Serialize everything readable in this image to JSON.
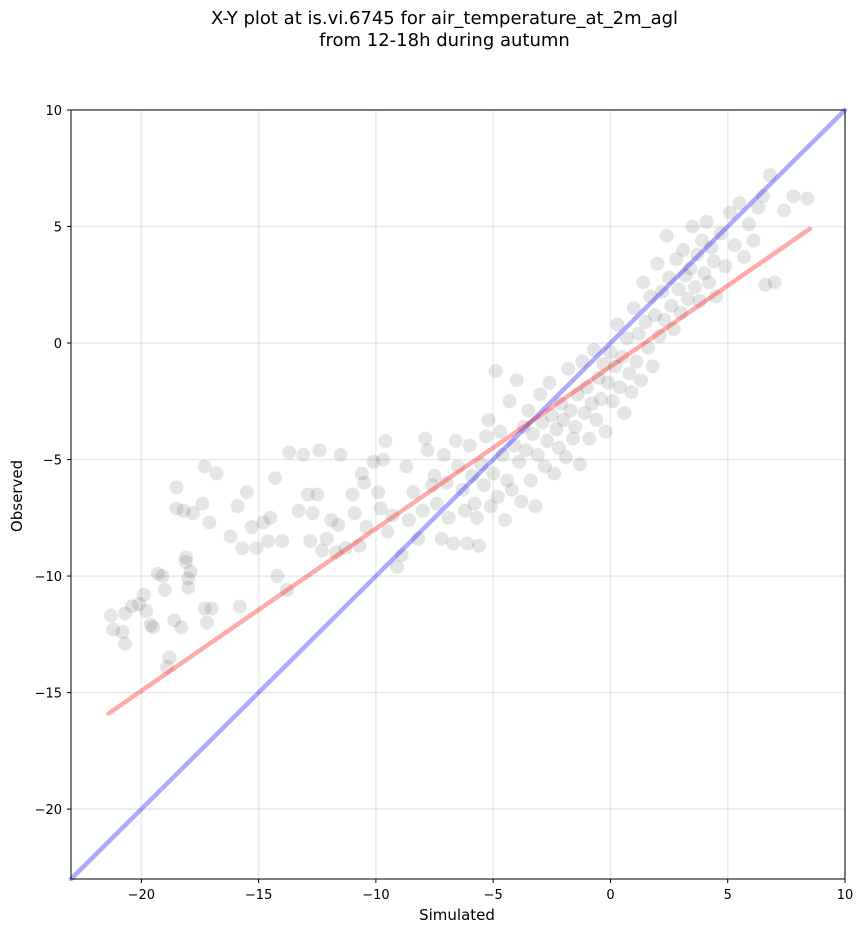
{
  "chart_data": {
    "type": "scatter",
    "title_line1": "X-Y plot at is.vi.6745 for air_temperature_at_2m_agl",
    "title_line2": "from 12-18h during autumn",
    "xlabel": "Simulated",
    "ylabel": "Observed",
    "xlim": [
      -23,
      10
    ],
    "ylim": [
      -23,
      10
    ],
    "xticks": [
      -20,
      -15,
      -10,
      -5,
      0,
      5,
      10
    ],
    "yticks": [
      -20,
      -15,
      -10,
      -5,
      0,
      5,
      10
    ],
    "grid": true,
    "point_color": "#000000",
    "point_alpha": 0.1,
    "series": [
      {
        "points": [
          [
            -21.3,
            -11.7
          ],
          [
            -21.2,
            -12.3
          ],
          [
            -20.8,
            -12.4
          ],
          [
            -20.7,
            -11.6
          ],
          [
            -20.7,
            -12.9
          ],
          [
            -20.4,
            -11.3
          ],
          [
            -20.1,
            -11.2
          ],
          [
            -19.9,
            -10.8
          ],
          [
            -19.8,
            -11.5
          ],
          [
            -19.6,
            -12.1
          ],
          [
            -19.5,
            -12.2
          ],
          [
            -19.3,
            -9.9
          ],
          [
            -19.1,
            -10.0
          ],
          [
            -19.0,
            -10.6
          ],
          [
            -18.9,
            -13.9
          ],
          [
            -18.8,
            -13.5
          ],
          [
            -18.6,
            -11.9
          ],
          [
            -18.5,
            -7.1
          ],
          [
            -18.5,
            -6.2
          ],
          [
            -18.3,
            -12.2
          ],
          [
            -18.2,
            -7.2
          ],
          [
            -18.1,
            -9.2
          ],
          [
            -18.1,
            -9.4
          ],
          [
            -18.0,
            -10.1
          ],
          [
            -18.0,
            -10.5
          ],
          [
            -17.9,
            -9.8
          ],
          [
            -17.8,
            -7.3
          ],
          [
            -17.4,
            -6.9
          ],
          [
            -17.3,
            -11.4
          ],
          [
            -17.3,
            -5.3
          ],
          [
            -17.2,
            -12.0
          ],
          [
            -17.1,
            -7.7
          ],
          [
            -17.0,
            -11.4
          ],
          [
            -16.8,
            -5.6
          ],
          [
            -16.2,
            -8.3
          ],
          [
            -15.9,
            -7.0
          ],
          [
            -15.8,
            -11.3
          ],
          [
            -15.7,
            -8.8
          ],
          [
            -15.5,
            -6.4
          ],
          [
            -15.3,
            -7.9
          ],
          [
            -15.1,
            -8.8
          ],
          [
            -14.8,
            -7.7
          ],
          [
            -14.6,
            -8.5
          ],
          [
            -14.5,
            -7.5
          ],
          [
            -14.3,
            -5.8
          ],
          [
            -14.2,
            -10.0
          ],
          [
            -14.0,
            -8.5
          ],
          [
            -13.8,
            -10.6
          ],
          [
            -13.7,
            -4.7
          ],
          [
            -13.3,
            -7.2
          ],
          [
            -13.1,
            -4.8
          ],
          [
            -12.9,
            -6.5
          ],
          [
            -12.8,
            -8.5
          ],
          [
            -12.7,
            -7.3
          ],
          [
            -12.5,
            -6.5
          ],
          [
            -12.4,
            -4.6
          ],
          [
            -12.3,
            -8.9
          ],
          [
            -12.1,
            -8.4
          ],
          [
            -11.9,
            -7.6
          ],
          [
            -11.7,
            -9.0
          ],
          [
            -11.6,
            -7.8
          ],
          [
            -11.5,
            -4.8
          ],
          [
            -11.3,
            -8.8
          ],
          [
            -11.0,
            -6.5
          ],
          [
            -10.9,
            -7.3
          ],
          [
            -10.7,
            -8.7
          ],
          [
            -10.6,
            -5.6
          ],
          [
            -10.5,
            -6.0
          ],
          [
            -10.4,
            -7.9
          ],
          [
            -10.1,
            -5.1
          ],
          [
            -9.9,
            -6.4
          ],
          [
            -9.8,
            -7.1
          ],
          [
            -9.7,
            -5.0
          ],
          [
            -9.6,
            -4.2
          ],
          [
            -9.5,
            -8.1
          ],
          [
            -9.3,
            -7.4
          ],
          [
            -9.1,
            -9.6
          ],
          [
            -8.9,
            -9.1
          ],
          [
            -8.7,
            -5.3
          ],
          [
            -8.6,
            -7.6
          ],
          [
            -8.4,
            -6.4
          ],
          [
            -8.2,
            -8.4
          ],
          [
            -8.0,
            -7.2
          ],
          [
            -7.9,
            -4.1
          ],
          [
            -7.8,
            -4.6
          ],
          [
            -7.6,
            -6.1
          ],
          [
            -7.5,
            -5.7
          ],
          [
            -7.4,
            -6.9
          ],
          [
            -7.2,
            -8.4
          ],
          [
            -7.1,
            -4.8
          ],
          [
            -7.0,
            -6.0
          ],
          [
            -6.9,
            -7.5
          ],
          [
            -6.7,
            -8.6
          ],
          [
            -6.6,
            -4.2
          ],
          [
            -6.5,
            -5.3
          ],
          [
            -6.3,
            -6.3
          ],
          [
            -6.2,
            -7.2
          ],
          [
            -6.1,
            -8.6
          ],
          [
            -6.0,
            -4.4
          ],
          [
            -5.9,
            -5.7
          ],
          [
            -5.8,
            -6.9
          ],
          [
            -5.7,
            -7.5
          ],
          [
            -5.6,
            -8.7
          ],
          [
            -5.5,
            -5.2
          ],
          [
            -5.4,
            -6.1
          ],
          [
            -5.3,
            -4.0
          ],
          [
            -5.2,
            -3.3
          ],
          [
            -5.1,
            -7.0
          ],
          [
            -5.0,
            -5.6
          ],
          [
            -4.9,
            -1.2
          ],
          [
            -4.8,
            -6.6
          ],
          [
            -4.7,
            -3.8
          ],
          [
            -4.6,
            -4.8
          ],
          [
            -4.5,
            -7.6
          ],
          [
            -4.4,
            -5.9
          ],
          [
            -4.3,
            -2.5
          ],
          [
            -4.2,
            -6.3
          ],
          [
            -4.1,
            -4.4
          ],
          [
            -4.0,
            -1.6
          ],
          [
            -3.9,
            -5.1
          ],
          [
            -3.8,
            -6.8
          ],
          [
            -3.7,
            -3.6
          ],
          [
            -3.6,
            -4.6
          ],
          [
            -3.5,
            -2.9
          ],
          [
            -3.4,
            -5.9
          ],
          [
            -3.3,
            -3.9
          ],
          [
            -3.2,
            -7.0
          ],
          [
            -3.1,
            -4.8
          ],
          [
            -3.0,
            -2.2
          ],
          [
            -2.9,
            -3.4
          ],
          [
            -2.8,
            -5.3
          ],
          [
            -2.7,
            -4.2
          ],
          [
            -2.6,
            -1.7
          ],
          [
            -2.5,
            -3.1
          ],
          [
            -2.4,
            -5.6
          ],
          [
            -2.3,
            -3.7
          ],
          [
            -2.2,
            -4.5
          ],
          [
            -2.1,
            -2.6
          ],
          [
            -2.0,
            -3.3
          ],
          [
            -1.9,
            -4.9
          ],
          [
            -1.8,
            -1.1
          ],
          [
            -1.7,
            -2.9
          ],
          [
            -1.6,
            -4.1
          ],
          [
            -1.5,
            -3.6
          ],
          [
            -1.4,
            -2.2
          ],
          [
            -1.3,
            -5.2
          ],
          [
            -1.2,
            -0.8
          ],
          [
            -1.1,
            -3.0
          ],
          [
            -1.0,
            -1.9
          ],
          [
            -0.9,
            -4.1
          ],
          [
            -0.8,
            -2.6
          ],
          [
            -0.7,
            -0.3
          ],
          [
            -0.6,
            -3.3
          ],
          [
            -0.5,
            -1.5
          ],
          [
            -0.4,
            -2.4
          ],
          [
            -0.3,
            -0.9
          ],
          [
            -0.2,
            -3.8
          ],
          [
            -0.1,
            -1.7
          ],
          [
            0.0,
            -0.4
          ],
          [
            0.1,
            -2.5
          ],
          [
            0.2,
            -1.0
          ],
          [
            0.3,
            0.8
          ],
          [
            0.4,
            -1.9
          ],
          [
            0.5,
            -0.6
          ],
          [
            0.6,
            -3.0
          ],
          [
            0.7,
            0.2
          ],
          [
            0.8,
            -1.3
          ],
          [
            0.9,
            -2.1
          ],
          [
            1.0,
            1.5
          ],
          [
            1.1,
            -0.8
          ],
          [
            1.2,
            0.4
          ],
          [
            1.3,
            -1.6
          ],
          [
            1.4,
            2.6
          ],
          [
            1.5,
            0.9
          ],
          [
            1.6,
            -0.2
          ],
          [
            1.7,
            2.0
          ],
          [
            1.8,
            -1.0
          ],
          [
            1.9,
            1.2
          ],
          [
            2.0,
            3.4
          ],
          [
            2.1,
            0.3
          ],
          [
            2.2,
            2.2
          ],
          [
            2.3,
            1.0
          ],
          [
            2.4,
            4.6
          ],
          [
            2.5,
            2.8
          ],
          [
            2.6,
            1.6
          ],
          [
            2.7,
            0.6
          ],
          [
            2.8,
            3.6
          ],
          [
            2.9,
            2.3
          ],
          [
            3.0,
            1.3
          ],
          [
            3.1,
            4.0
          ],
          [
            3.2,
            2.9
          ],
          [
            3.3,
            1.9
          ],
          [
            3.4,
            3.2
          ],
          [
            3.5,
            5.0
          ],
          [
            3.6,
            2.4
          ],
          [
            3.7,
            3.8
          ],
          [
            3.8,
            1.8
          ],
          [
            3.9,
            4.4
          ],
          [
            4.0,
            3.0
          ],
          [
            4.1,
            5.2
          ],
          [
            4.2,
            2.6
          ],
          [
            4.3,
            4.1
          ],
          [
            4.4,
            3.5
          ],
          [
            4.5,
            2.0
          ],
          [
            4.7,
            4.7
          ],
          [
            4.9,
            3.3
          ],
          [
            5.1,
            5.6
          ],
          [
            5.3,
            4.2
          ],
          [
            5.5,
            6.0
          ],
          [
            5.7,
            3.7
          ],
          [
            5.9,
            5.1
          ],
          [
            6.1,
            4.4
          ],
          [
            6.3,
            5.8
          ],
          [
            6.5,
            6.3
          ],
          [
            6.6,
            2.5
          ],
          [
            6.8,
            7.2
          ],
          [
            7.0,
            2.6
          ],
          [
            7.4,
            5.7
          ],
          [
            7.8,
            6.3
          ],
          [
            8.4,
            6.2
          ]
        ]
      }
    ],
    "lines": [
      {
        "name": "1:1",
        "color": "#0000ff",
        "alpha": 0.33,
        "x": [
          -23,
          10
        ],
        "y": [
          -23,
          10
        ]
      },
      {
        "name": "fit",
        "color": "#ff0000",
        "alpha": 0.33,
        "x": [
          -21.4,
          8.5
        ],
        "y": [
          -15.9,
          4.9
        ]
      }
    ]
  }
}
